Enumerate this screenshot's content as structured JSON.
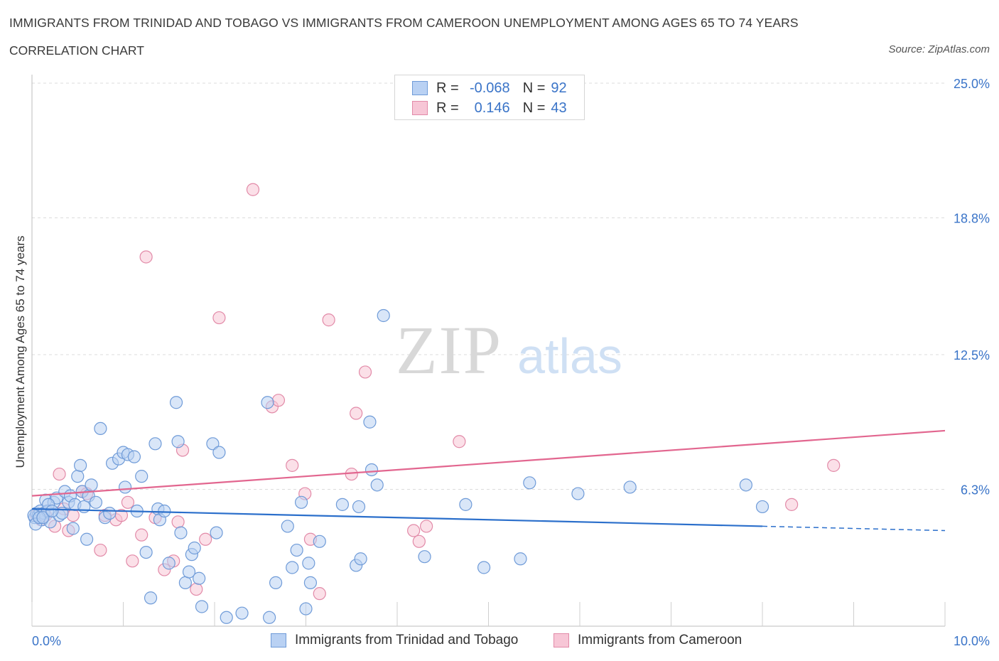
{
  "title": "IMMIGRANTS FROM TRINIDAD AND TOBAGO VS IMMIGRANTS FROM CAMEROON UNEMPLOYMENT AMONG AGES 65 TO 74 YEARS",
  "subtitle": "CORRELATION CHART",
  "source": "Source: ZipAtlas.com",
  "watermark": {
    "zip": "ZIP",
    "atlas": "atlas"
  },
  "legend": {
    "rows": [
      {
        "r_label": "R =",
        "r_value": "-0.068",
        "n_label": "N =",
        "n_value": "92"
      },
      {
        "r_label": "R =",
        "r_value": "0.146",
        "n_label": "N =",
        "n_value": "43"
      }
    ]
  },
  "bottom_legend": [
    "Immigrants from Trinidad and Tobago",
    "Immigrants from Cameroon"
  ],
  "x_tick_labels": {
    "left": "0.0%",
    "right": "10.0%"
  },
  "colors": {
    "blue_fill": "#b9d1f3",
    "blue_stroke": "#6f9bd8",
    "blue_line": "#2b6fcb",
    "pink_fill": "#f7c6d6",
    "pink_stroke": "#e28aa8",
    "pink_line": "#e2668f",
    "axis_label": "#3a74c8",
    "grid": "#dcdcdc"
  },
  "chart_data": {
    "type": "scatter",
    "title": "IMMIGRANTS FROM TRINIDAD AND TOBAGO VS IMMIGRANTS FROM CAMEROON UNEMPLOYMENT AMONG AGES 65 TO 74 YEARS",
    "xlabel": "",
    "ylabel": "Unemployment Among Ages 65 to 74 years",
    "xlim": [
      0,
      10
    ],
    "ylim": [
      0,
      25
    ],
    "y_ticks": [
      6.3,
      12.5,
      18.8,
      25.0
    ],
    "y_tick_labels": [
      "6.3%",
      "12.5%",
      "18.8%",
      "25.0%"
    ],
    "x_ticks": [
      0,
      10
    ],
    "x_tick_labels": [
      "0.0%",
      "10.0%"
    ],
    "grid": true,
    "legend_position": "top-center",
    "series": [
      {
        "name": "Immigrants from Trinidad and Tobago",
        "color": "#6f9bd8",
        "R": -0.068,
        "N": 92,
        "trend": {
          "x": [
            0,
            8.0
          ],
          "y": [
            5.4,
            4.6
          ],
          "dashed_to": [
            10.0,
            4.4
          ]
        },
        "points": [
          [
            0.03,
            5.0
          ],
          [
            0.05,
            5.2
          ],
          [
            0.07,
            5.1
          ],
          [
            0.09,
            5.3
          ],
          [
            0.11,
            4.9
          ],
          [
            0.13,
            5.2
          ],
          [
            0.15,
            5.8
          ],
          [
            0.17,
            5.3
          ],
          [
            0.2,
            4.8
          ],
          [
            0.24,
            5.7
          ],
          [
            0.27,
            5.9
          ],
          [
            0.3,
            5.1
          ],
          [
            0.33,
            5.2
          ],
          [
            0.36,
            6.2
          ],
          [
            0.4,
            5.7
          ],
          [
            0.42,
            6.0
          ],
          [
            0.45,
            4.5
          ],
          [
            0.47,
            5.6
          ],
          [
            0.5,
            6.9
          ],
          [
            0.53,
            7.4
          ],
          [
            0.55,
            6.2
          ],
          [
            0.57,
            5.5
          ],
          [
            0.6,
            4.0
          ],
          [
            0.62,
            6.0
          ],
          [
            0.65,
            6.5
          ],
          [
            0.7,
            5.7
          ],
          [
            0.75,
            9.1
          ],
          [
            0.8,
            5.0
          ],
          [
            0.85,
            5.2
          ],
          [
            0.88,
            7.5
          ],
          [
            0.95,
            7.7
          ],
          [
            1.0,
            8.0
          ],
          [
            1.02,
            6.4
          ],
          [
            1.05,
            7.9
          ],
          [
            1.12,
            7.8
          ],
          [
            1.15,
            5.3
          ],
          [
            1.2,
            6.9
          ],
          [
            1.25,
            3.4
          ],
          [
            1.3,
            1.3
          ],
          [
            1.35,
            8.4
          ],
          [
            1.38,
            5.4
          ],
          [
            1.4,
            4.9
          ],
          [
            1.45,
            5.3
          ],
          [
            1.5,
            2.9
          ],
          [
            1.58,
            10.3
          ],
          [
            1.6,
            8.5
          ],
          [
            1.63,
            4.3
          ],
          [
            1.68,
            2.0
          ],
          [
            1.72,
            2.5
          ],
          [
            1.75,
            3.3
          ],
          [
            1.78,
            3.6
          ],
          [
            1.83,
            2.2
          ],
          [
            1.86,
            0.9
          ],
          [
            1.98,
            8.4
          ],
          [
            2.02,
            4.3
          ],
          [
            2.05,
            8.0
          ],
          [
            2.13,
            0.4
          ],
          [
            2.3,
            0.6
          ],
          [
            2.6,
            0.4
          ],
          [
            2.58,
            10.3
          ],
          [
            2.67,
            2.0
          ],
          [
            2.8,
            4.6
          ],
          [
            2.85,
            2.7
          ],
          [
            2.9,
            3.5
          ],
          [
            2.95,
            5.7
          ],
          [
            3.0,
            0.8
          ],
          [
            3.03,
            2.9
          ],
          [
            3.05,
            2.0
          ],
          [
            3.15,
            3.9
          ],
          [
            3.4,
            5.6
          ],
          [
            3.55,
            2.8
          ],
          [
            3.58,
            5.5
          ],
          [
            3.6,
            3.1
          ],
          [
            3.7,
            9.4
          ],
          [
            3.72,
            7.2
          ],
          [
            3.78,
            6.5
          ],
          [
            3.85,
            14.3
          ],
          [
            4.3,
            3.2
          ],
          [
            4.75,
            5.6
          ],
          [
            4.95,
            2.7
          ],
          [
            5.35,
            3.1
          ],
          [
            5.45,
            6.6
          ],
          [
            5.98,
            6.1
          ],
          [
            6.55,
            6.4
          ],
          [
            7.82,
            6.5
          ],
          [
            8.0,
            5.5
          ],
          [
            0.02,
            5.1
          ],
          [
            0.04,
            4.7
          ],
          [
            0.08,
            5.0
          ],
          [
            0.12,
            5.0
          ],
          [
            0.18,
            5.6
          ],
          [
            0.22,
            5.3
          ]
        ]
      },
      {
        "name": "Immigrants from Cameroon",
        "color": "#e28aa8",
        "R": 0.146,
        "N": 43,
        "trend": {
          "x": [
            0,
            10.0
          ],
          "y": [
            6.0,
            9.0
          ]
        },
        "points": [
          [
            0.05,
            5.1
          ],
          [
            0.1,
            4.9
          ],
          [
            0.15,
            5.1
          ],
          [
            0.25,
            4.6
          ],
          [
            0.3,
            7.0
          ],
          [
            0.35,
            5.4
          ],
          [
            0.4,
            4.4
          ],
          [
            0.45,
            5.1
          ],
          [
            0.55,
            6.2
          ],
          [
            0.6,
            6.1
          ],
          [
            0.75,
            3.5
          ],
          [
            0.8,
            5.1
          ],
          [
            0.92,
            4.9
          ],
          [
            0.98,
            5.1
          ],
          [
            1.05,
            5.7
          ],
          [
            1.1,
            3.0
          ],
          [
            1.2,
            4.2
          ],
          [
            1.25,
            17.0
          ],
          [
            1.35,
            5.0
          ],
          [
            1.45,
            2.6
          ],
          [
            1.55,
            3.0
          ],
          [
            1.6,
            4.8
          ],
          [
            1.65,
            8.1
          ],
          [
            1.8,
            1.7
          ],
          [
            1.9,
            4.0
          ],
          [
            2.05,
            14.2
          ],
          [
            2.42,
            20.1
          ],
          [
            2.63,
            10.1
          ],
          [
            2.7,
            10.4
          ],
          [
            2.85,
            7.4
          ],
          [
            2.99,
            6.1
          ],
          [
            3.05,
            4.0
          ],
          [
            3.15,
            1.5
          ],
          [
            3.25,
            14.1
          ],
          [
            3.5,
            7.0
          ],
          [
            3.55,
            9.8
          ],
          [
            3.65,
            11.7
          ],
          [
            4.18,
            4.4
          ],
          [
            4.24,
            3.9
          ],
          [
            4.32,
            4.6
          ],
          [
            4.68,
            8.5
          ],
          [
            8.32,
            5.6
          ],
          [
            8.78,
            7.4
          ]
        ]
      }
    ]
  }
}
